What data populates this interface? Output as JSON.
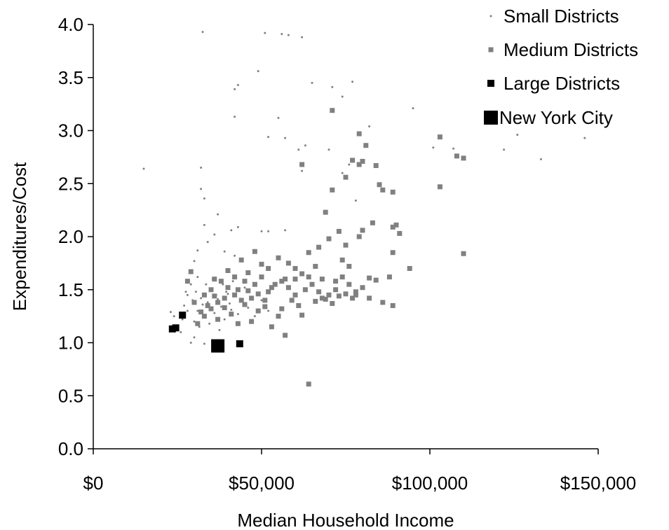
{
  "chart_data": {
    "type": "scatter",
    "title": "",
    "xlabel": "Median Household Income",
    "ylabel": "Expenditures/Cost",
    "xlim": [
      0,
      150000
    ],
    "ylim": [
      0.0,
      4.0
    ],
    "x_ticks": [
      0,
      50000,
      100000,
      150000
    ],
    "x_tick_labels": [
      "$0",
      "$50,000",
      "$100,000",
      "$150,000"
    ],
    "y_ticks": [
      0,
      0.5,
      1,
      1.5,
      2,
      2.5,
      3,
      3.5,
      4
    ],
    "y_tick_labels": [
      "0.0",
      "0.5",
      "1.0",
      "1.5",
      "2.0",
      "2.5",
      "3.0",
      "3.5",
      "4.0"
    ],
    "grid": false,
    "legend_position": "top-right",
    "series": [
      {
        "name": "Small Districts",
        "color": "#808080",
        "marker": "small-dot",
        "points": [
          [
            15000,
            2.64
          ],
          [
            32500,
            3.93
          ],
          [
            51000,
            3.92
          ],
          [
            56000,
            3.91
          ],
          [
            58000,
            3.9
          ],
          [
            62000,
            3.88
          ],
          [
            49000,
            3.56
          ],
          [
            42000,
            3.39
          ],
          [
            43000,
            3.43
          ],
          [
            65000,
            3.45
          ],
          [
            77000,
            3.46
          ],
          [
            71000,
            3.41
          ],
          [
            74000,
            3.32
          ],
          [
            95000,
            3.21
          ],
          [
            42000,
            3.13
          ],
          [
            55000,
            3.12
          ],
          [
            82000,
            3.04
          ],
          [
            52000,
            2.94
          ],
          [
            57000,
            2.93
          ],
          [
            63000,
            2.86
          ],
          [
            70000,
            2.82
          ],
          [
            61000,
            2.82
          ],
          [
            101000,
            2.84
          ],
          [
            107000,
            2.83
          ],
          [
            122000,
            2.82
          ],
          [
            126000,
            2.96
          ],
          [
            146000,
            2.93
          ],
          [
            133000,
            2.73
          ],
          [
            32000,
            2.65
          ],
          [
            62000,
            2.62
          ],
          [
            74000,
            2.6
          ],
          [
            78000,
            2.34
          ],
          [
            76000,
            2.68
          ],
          [
            32000,
            2.45
          ],
          [
            33000,
            2.36
          ],
          [
            37000,
            2.21
          ],
          [
            33000,
            2.11
          ],
          [
            43000,
            2.09
          ],
          [
            41000,
            2.06
          ],
          [
            50000,
            2.05
          ],
          [
            57000,
            2.06
          ],
          [
            52000,
            2.05
          ],
          [
            36000,
            2.02
          ],
          [
            34000,
            1.95
          ],
          [
            31000,
            1.87
          ],
          [
            39000,
            1.86
          ],
          [
            42000,
            1.82
          ],
          [
            30000,
            1.77
          ],
          [
            23000,
            1.29
          ],
          [
            26000,
            1.1
          ],
          [
            30000,
            1.05
          ],
          [
            33000,
            0.99
          ],
          [
            29000,
            1.0
          ],
          [
            24000,
            1.25
          ],
          [
            27000,
            1.35
          ],
          [
            29000,
            1.55
          ],
          [
            31000,
            1.62
          ],
          [
            28000,
            1.45
          ],
          [
            30000,
            1.2
          ],
          [
            31000,
            1.3
          ],
          [
            32000,
            1.42
          ],
          [
            33000,
            1.25
          ],
          [
            34000,
            1.38
          ],
          [
            35000,
            1.5
          ],
          [
            36000,
            1.28
          ],
          [
            37000,
            1.41
          ],
          [
            38000,
            1.34
          ],
          [
            39000,
            1.22
          ],
          [
            40000,
            1.46
          ],
          [
            41000,
            1.31
          ],
          [
            42000,
            1.44
          ],
          [
            43000,
            1.27
          ],
          [
            44000,
            1.39
          ],
          [
            45000,
            1.52
          ],
          [
            46000,
            1.33
          ],
          [
            28000,
            1.3
          ],
          [
            29500,
            1.4
          ],
          [
            30500,
            1.48
          ],
          [
            32500,
            1.36
          ],
          [
            34500,
            1.18
          ],
          [
            36500,
            1.45
          ],
          [
            38500,
            1.55
          ],
          [
            40500,
            1.37
          ],
          [
            35500,
            1.6
          ],
          [
            33500,
            1.55
          ],
          [
            31500,
            1.15
          ],
          [
            37500,
            1.12
          ],
          [
            39500,
            1.48
          ],
          [
            41500,
            1.58
          ],
          [
            26500,
            1.22
          ],
          [
            27500,
            1.48
          ],
          [
            48000,
            1.25
          ],
          [
            50000,
            1.4
          ],
          [
            52000,
            1.3
          ]
        ]
      },
      {
        "name": "Medium Districts",
        "color": "#808080",
        "marker": "medium-square",
        "points": [
          [
            71000,
            3.19
          ],
          [
            79000,
            2.97
          ],
          [
            81000,
            2.86
          ],
          [
            77000,
            2.72
          ],
          [
            79000,
            2.68
          ],
          [
            80000,
            2.71
          ],
          [
            84000,
            2.67
          ],
          [
            103000,
            2.94
          ],
          [
            108000,
            2.76
          ],
          [
            110000,
            2.74
          ],
          [
            103000,
            2.47
          ],
          [
            110000,
            1.84
          ],
          [
            75000,
            2.56
          ],
          [
            71000,
            2.44
          ],
          [
            85000,
            2.49
          ],
          [
            86000,
            2.44
          ],
          [
            89000,
            2.42
          ],
          [
            62000,
            2.68
          ],
          [
            69000,
            2.23
          ],
          [
            73000,
            2.05
          ],
          [
            80000,
            2.06
          ],
          [
            83000,
            2.13
          ],
          [
            89000,
            2.09
          ],
          [
            90000,
            2.11
          ],
          [
            91000,
            2.03
          ],
          [
            79000,
            2.0
          ],
          [
            67000,
            1.9
          ],
          [
            64000,
            1.85
          ],
          [
            70000,
            1.98
          ],
          [
            75000,
            1.92
          ],
          [
            74000,
            1.78
          ],
          [
            76000,
            1.72
          ],
          [
            82000,
            1.61
          ],
          [
            84000,
            1.59
          ],
          [
            89000,
            1.85
          ],
          [
            88000,
            1.62
          ],
          [
            94000,
            1.7
          ],
          [
            89000,
            1.35
          ],
          [
            86000,
            1.38
          ],
          [
            82000,
            1.42
          ],
          [
            80000,
            1.52
          ],
          [
            78000,
            1.48
          ],
          [
            72000,
            1.5
          ],
          [
            70000,
            1.45
          ],
          [
            68000,
            1.42
          ],
          [
            66000,
            1.39
          ],
          [
            64000,
            0.61
          ],
          [
            57000,
            1.07
          ],
          [
            62000,
            1.26
          ],
          [
            60000,
            1.45
          ],
          [
            58000,
            1.52
          ],
          [
            56000,
            1.58
          ],
          [
            54000,
            1.55
          ],
          [
            52000,
            1.48
          ],
          [
            50000,
            1.62
          ],
          [
            48000,
            1.55
          ],
          [
            46000,
            1.49
          ],
          [
            44000,
            1.4
          ],
          [
            42000,
            1.45
          ],
          [
            40000,
            1.52
          ],
          [
            38000,
            1.58
          ],
          [
            36000,
            1.44
          ],
          [
            34000,
            1.35
          ],
          [
            32000,
            1.29
          ],
          [
            30000,
            1.38
          ],
          [
            28000,
            1.58
          ],
          [
            29000,
            1.67
          ],
          [
            31000,
            1.18
          ],
          [
            33000,
            1.25
          ],
          [
            35000,
            1.5
          ],
          [
            37000,
            1.22
          ],
          [
            39000,
            1.33
          ],
          [
            41000,
            1.27
          ],
          [
            43000,
            1.18
          ],
          [
            45000,
            1.36
          ],
          [
            47000,
            1.2
          ],
          [
            49000,
            1.3
          ],
          [
            51000,
            1.4
          ],
          [
            53000,
            1.15
          ],
          [
            55000,
            1.25
          ],
          [
            44000,
            1.78
          ],
          [
            40000,
            1.68
          ],
          [
            42000,
            1.62
          ],
          [
            46000,
            1.66
          ],
          [
            48000,
            1.86
          ],
          [
            50000,
            1.74
          ],
          [
            52000,
            1.7
          ],
          [
            55000,
            1.8
          ],
          [
            58000,
            1.75
          ],
          [
            60000,
            1.7
          ],
          [
            62000,
            1.65
          ],
          [
            66000,
            1.72
          ],
          [
            68000,
            1.6
          ],
          [
            72000,
            1.58
          ],
          [
            74000,
            1.62
          ],
          [
            76000,
            1.55
          ],
          [
            78000,
            1.45
          ],
          [
            59000,
            1.4
          ],
          [
            61000,
            1.35
          ],
          [
            63000,
            1.5
          ],
          [
            65000,
            1.55
          ],
          [
            67000,
            1.48
          ],
          [
            69000,
            1.41
          ],
          [
            71000,
            1.37
          ],
          [
            73000,
            1.44
          ],
          [
            75000,
            1.46
          ],
          [
            77000,
            1.42
          ],
          [
            57000,
            1.6
          ],
          [
            53000,
            1.52
          ],
          [
            47000,
            1.42
          ],
          [
            43000,
            1.5
          ],
          [
            39000,
            1.42
          ],
          [
            35000,
            1.32
          ],
          [
            33000,
            1.45
          ],
          [
            37000,
            1.38
          ],
          [
            45000,
            1.58
          ],
          [
            49000,
            1.46
          ],
          [
            51000,
            1.34
          ],
          [
            56000,
            1.32
          ],
          [
            60000,
            1.6
          ],
          [
            64000,
            1.62
          ],
          [
            36000,
            1.6
          ]
        ]
      },
      {
        "name": "Large Districts",
        "color": "#000000",
        "marker": "large-square",
        "points": [
          [
            23500,
            1.13
          ],
          [
            24500,
            1.14
          ],
          [
            26500,
            1.26
          ],
          [
            43500,
            0.99
          ]
        ]
      },
      {
        "name": "New York City",
        "color": "#000000",
        "marker": "xlarge-square",
        "points": [
          [
            37000,
            0.97
          ]
        ]
      }
    ]
  }
}
